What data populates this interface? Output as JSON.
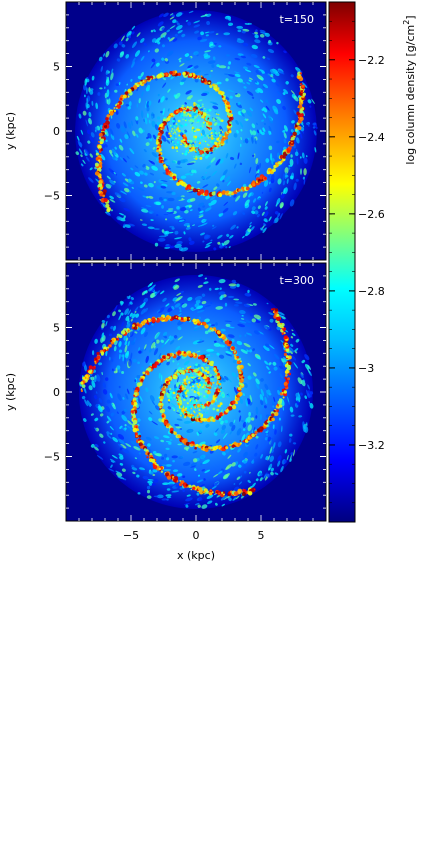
{
  "chart_data": [
    {
      "type": "heatmap",
      "panel": "top",
      "time_label": "t=150",
      "xlabel": "",
      "ylabel": "y (kpc)",
      "xlim": [
        -10,
        10
      ],
      "ylim": [
        -10,
        10
      ],
      "yticks": [
        5,
        0,
        -5
      ],
      "ytick_labels": [
        "5",
        "0",
        "−5"
      ],
      "content": "face-on gas column density map of a two-armed spiral galaxy disk (radius ≈ 9 kpc) on a dark-blue background"
    },
    {
      "type": "heatmap",
      "panel": "bottom",
      "time_label": "t=300",
      "xlabel": "x (kpc)",
      "ylabel": "y (kpc)",
      "xlim": [
        -10,
        10
      ],
      "ylim": [
        -10,
        10
      ],
      "xticks": [
        -5,
        0,
        5
      ],
      "xtick_labels": [
        "−5",
        "0",
        "5"
      ],
      "yticks": [
        5,
        0,
        -5
      ],
      "ytick_labels": [
        "5",
        "0",
        "−5"
      ],
      "content": "face-on gas column density map of a multi-armed flocculent spiral disk (radius ≈ 9 kpc) on a dark-blue background"
    }
  ],
  "colorbar": {
    "label": "log column density [g/cm",
    "label_sup": "2",
    "label_end": "]",
    "range": [
      -3.4,
      -2.05
    ],
    "ticks": [
      -2.2,
      -2.4,
      -2.6,
      -2.8,
      -3,
      -3.2
    ],
    "tick_labels": [
      "−2.2",
      "−2.4",
      "−2.6",
      "−2.8",
      "−3",
      "−3.2"
    ],
    "colormap": "jet",
    "colors": [
      "#00007f",
      "#0000ff",
      "#007fff",
      "#00ffff",
      "#7fff7f",
      "#ffff00",
      "#ff7f00",
      "#ff0000",
      "#7f0000"
    ]
  },
  "background_color": "#00008b"
}
